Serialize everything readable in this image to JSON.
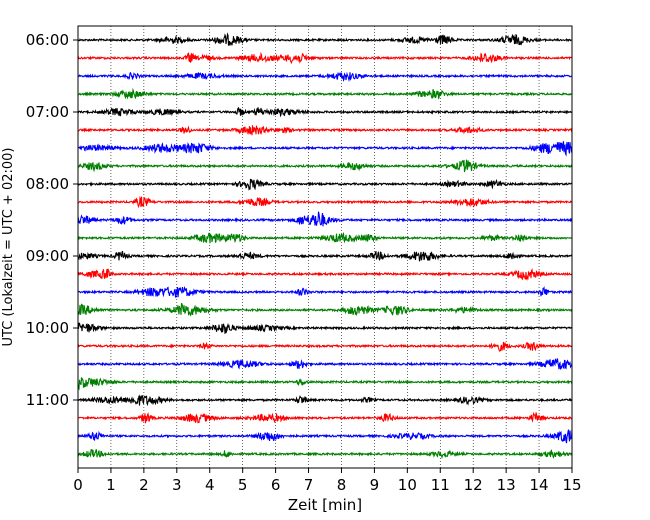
{
  "chart_data": {
    "type": "line",
    "xlabel": "Zeit  [min]",
    "ylabel": "UTC (Lokalzeit = UTC + 02:00)",
    "xlim": [
      0,
      15
    ],
    "x_ticks": [
      "0",
      "1",
      "2",
      "3",
      "4",
      "5",
      "6",
      "7",
      "8",
      "9",
      "10",
      "11",
      "12",
      "13",
      "14",
      "15"
    ],
    "y_ticks": [
      "06:00",
      "07:00",
      "08:00",
      "09:00",
      "10:00",
      "11:00"
    ],
    "grid": "vertical dotted lines at each minute",
    "trace_colors": [
      "#000000",
      "#ff0000",
      "#0000ff",
      "#008000"
    ],
    "traces": [
      {
        "start": "06:00",
        "color": "#000000"
      },
      {
        "start": "06:15",
        "color": "#ff0000"
      },
      {
        "start": "06:30",
        "color": "#0000ff"
      },
      {
        "start": "06:45",
        "color": "#008000"
      },
      {
        "start": "07:00",
        "color": "#000000"
      },
      {
        "start": "07:15",
        "color": "#ff0000"
      },
      {
        "start": "07:30",
        "color": "#0000ff"
      },
      {
        "start": "07:45",
        "color": "#008000"
      },
      {
        "start": "08:00",
        "color": "#000000"
      },
      {
        "start": "08:15",
        "color": "#ff0000"
      },
      {
        "start": "08:30",
        "color": "#0000ff"
      },
      {
        "start": "08:45",
        "color": "#008000"
      },
      {
        "start": "09:00",
        "color": "#000000"
      },
      {
        "start": "09:15",
        "color": "#ff0000"
      },
      {
        "start": "09:30",
        "color": "#0000ff"
      },
      {
        "start": "09:45",
        "color": "#008000"
      },
      {
        "start": "10:00",
        "color": "#000000"
      },
      {
        "start": "10:15",
        "color": "#ff0000"
      },
      {
        "start": "10:30",
        "color": "#0000ff"
      },
      {
        "start": "10:45",
        "color": "#008000"
      },
      {
        "start": "11:00",
        "color": "#000000"
      },
      {
        "start": "11:15",
        "color": "#ff0000"
      },
      {
        "start": "11:30",
        "color": "#0000ff"
      },
      {
        "start": "11:45",
        "color": "#008000"
      }
    ]
  }
}
